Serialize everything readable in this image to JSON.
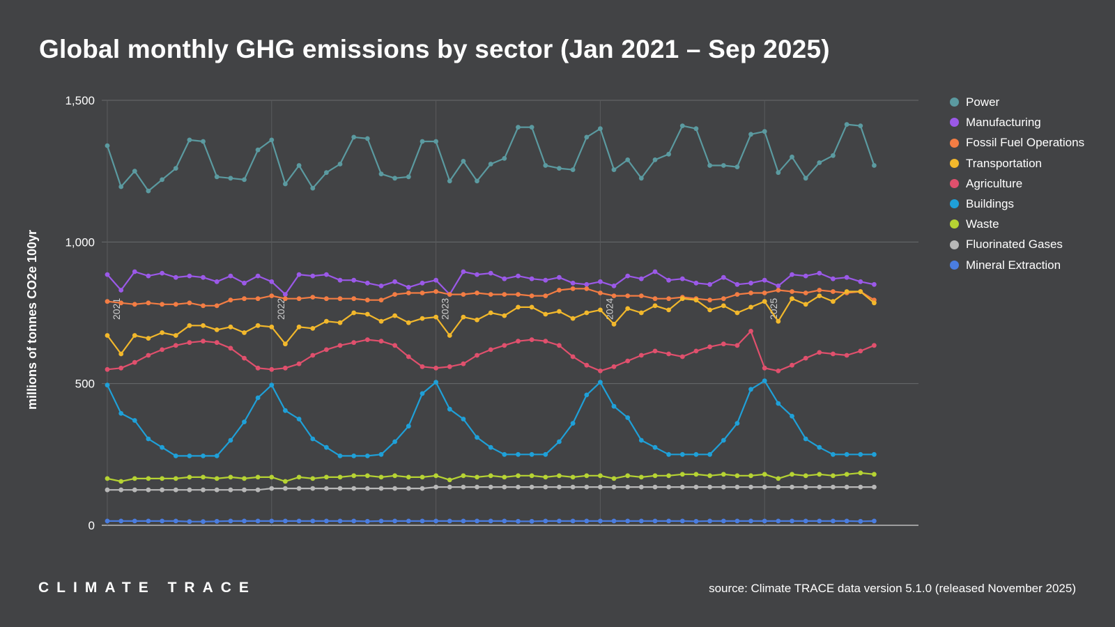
{
  "title": "Global monthly GHG emissions by sector (Jan 2021 – Sep 2025)",
  "logo_text": "CLIMATE TRACE",
  "source": "source: Climate TRACE data version 5.1.0 (released November 2025)",
  "chart_data": {
    "type": "line",
    "ylabel": "millions of tonnes CO2e 100yr",
    "ylim": [
      0,
      1500
    ],
    "yticks": [
      0,
      500,
      1000,
      1500
    ],
    "ytick_labels": [
      "0",
      "500",
      "1,000",
      "1,500"
    ],
    "grid": true,
    "legend": "right",
    "year_labels": [
      {
        "month_index": 0,
        "label": "2021"
      },
      {
        "month_index": 12,
        "label": "2022"
      },
      {
        "month_index": 24,
        "label": "2023"
      },
      {
        "month_index": 36,
        "label": "2024"
      },
      {
        "month_index": 48,
        "label": "2025"
      }
    ],
    "x_start": "2021-01",
    "x_end": "2025-09",
    "series": [
      {
        "name": "Power",
        "color": "#5b9aa0",
        "values": [
          1340,
          1195,
          1250,
          1180,
          1220,
          1260,
          1360,
          1355,
          1230,
          1225,
          1220,
          1325,
          1360,
          1205,
          1270,
          1190,
          1245,
          1275,
          1370,
          1365,
          1240,
          1225,
          1230,
          1355,
          1355,
          1215,
          1285,
          1215,
          1275,
          1295,
          1405,
          1405,
          1270,
          1260,
          1255,
          1370,
          1400,
          1255,
          1290,
          1225,
          1290,
          1310,
          1410,
          1400,
          1270,
          1270,
          1265,
          1380,
          1390,
          1245,
          1300,
          1225,
          1280,
          1305,
          1415,
          1410,
          1270
        ]
      },
      {
        "name": "Manufacturing",
        "color": "#9b59e8",
        "values": [
          885,
          830,
          895,
          880,
          890,
          875,
          880,
          875,
          860,
          880,
          855,
          880,
          860,
          815,
          885,
          880,
          885,
          865,
          865,
          855,
          845,
          860,
          840,
          855,
          865,
          815,
          895,
          885,
          890,
          870,
          880,
          870,
          865,
          875,
          855,
          850,
          860,
          845,
          880,
          870,
          895,
          865,
          870,
          855,
          850,
          875,
          850,
          855,
          865,
          845,
          885,
          880,
          890,
          870,
          875,
          860,
          850
        ]
      },
      {
        "name": "Fossil Fuel Operations",
        "color": "#f37d44",
        "values": [
          790,
          785,
          780,
          785,
          780,
          780,
          785,
          775,
          775,
          795,
          800,
          800,
          810,
          800,
          800,
          805,
          800,
          800,
          800,
          795,
          795,
          815,
          820,
          820,
          825,
          815,
          815,
          820,
          815,
          815,
          815,
          810,
          810,
          830,
          835,
          835,
          820,
          810,
          810,
          810,
          800,
          800,
          805,
          800,
          795,
          800,
          815,
          820,
          820,
          830,
          825,
          820,
          830,
          825,
          820,
          825,
          795
        ]
      },
      {
        "name": "Transportation",
        "color": "#f2b82c",
        "values": [
          670,
          605,
          670,
          660,
          680,
          670,
          705,
          705,
          690,
          700,
          680,
          705,
          700,
          640,
          700,
          695,
          720,
          715,
          750,
          745,
          720,
          740,
          715,
          730,
          735,
          670,
          735,
          725,
          750,
          740,
          770,
          770,
          745,
          755,
          730,
          750,
          760,
          710,
          765,
          750,
          775,
          760,
          800,
          795,
          760,
          775,
          750,
          770,
          790,
          720,
          800,
          780,
          810,
          790,
          825,
          825,
          785
        ]
      },
      {
        "name": "Agriculture",
        "color": "#e0506d",
        "values": [
          550,
          555,
          575,
          600,
          620,
          635,
          645,
          650,
          645,
          625,
          590,
          555,
          550,
          555,
          570,
          600,
          620,
          635,
          645,
          655,
          650,
          635,
          595,
          560,
          555,
          560,
          570,
          600,
          620,
          635,
          650,
          655,
          650,
          635,
          595,
          565,
          545,
          560,
          580,
          600,
          615,
          605,
          595,
          615,
          630,
          640,
          635,
          685,
          555,
          545,
          565,
          590,
          610,
          605,
          600,
          615,
          635
        ]
      },
      {
        "name": "Buildings",
        "color": "#1fa0d8",
        "values": [
          495,
          395,
          370,
          305,
          275,
          245,
          245,
          245,
          245,
          300,
          365,
          450,
          495,
          405,
          375,
          305,
          275,
          245,
          245,
          245,
          250,
          295,
          350,
          465,
          505,
          410,
          375,
          310,
          275,
          250,
          250,
          250,
          250,
          295,
          360,
          460,
          505,
          420,
          380,
          300,
          275,
          250,
          250,
          250,
          250,
          300,
          360,
          480,
          510,
          430,
          385,
          305,
          275,
          250,
          250,
          250,
          250
        ]
      },
      {
        "name": "Waste",
        "color": "#b6d333",
        "values": [
          165,
          155,
          165,
          165,
          165,
          165,
          170,
          170,
          165,
          170,
          165,
          170,
          170,
          155,
          170,
          165,
          170,
          170,
          175,
          175,
          170,
          175,
          170,
          170,
          175,
          160,
          175,
          170,
          175,
          170,
          175,
          175,
          170,
          175,
          170,
          175,
          175,
          165,
          175,
          170,
          175,
          175,
          180,
          180,
          175,
          180,
          175,
          175,
          180,
          165,
          180,
          175,
          180,
          175,
          180,
          185,
          180
        ]
      },
      {
        "name": "Fluorinated Gases",
        "color": "#b8b8b8",
        "values": [
          125,
          125,
          125,
          125,
          125,
          125,
          125,
          125,
          125,
          125,
          125,
          125,
          130,
          130,
          130,
          130,
          130,
          130,
          130,
          130,
          130,
          130,
          130,
          130,
          135,
          135,
          135,
          135,
          135,
          135,
          135,
          135,
          135,
          135,
          135,
          135,
          135,
          135,
          135,
          135,
          135,
          135,
          135,
          135,
          135,
          135,
          135,
          135,
          135,
          135,
          135,
          135,
          135,
          135,
          135,
          135,
          135
        ]
      },
      {
        "name": "Mineral Extraction",
        "color": "#4a7de0",
        "values": [
          15,
          15,
          15,
          15,
          15,
          15,
          13,
          13,
          14,
          15,
          15,
          15,
          15,
          15,
          15,
          15,
          15,
          15,
          15,
          14,
          15,
          15,
          15,
          15,
          15,
          15,
          15,
          15,
          15,
          15,
          14,
          14,
          15,
          15,
          15,
          15,
          15,
          15,
          15,
          15,
          15,
          15,
          15,
          14,
          15,
          15,
          15,
          15,
          15,
          15,
          15,
          15,
          15,
          15,
          15,
          14,
          15
        ]
      }
    ]
  }
}
